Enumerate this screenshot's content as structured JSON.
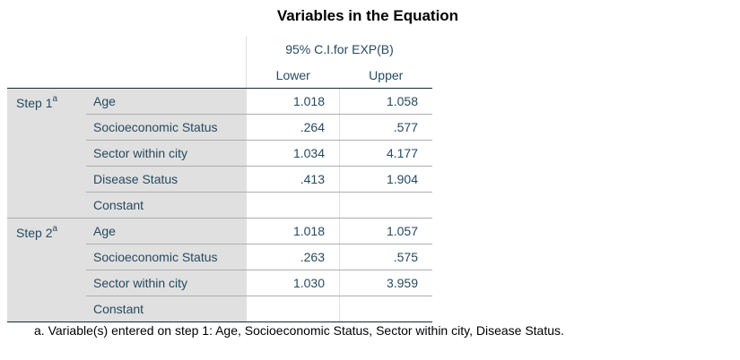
{
  "title": "Variables in the Equation",
  "header": {
    "span_label": "95% C.I.for EXP(B)",
    "lower": "Lower",
    "upper": "Upper"
  },
  "steps": [
    {
      "label": "Step 1",
      "sup": "a",
      "rows": [
        {
          "variable": "Age",
          "lower": "1.018",
          "upper": "1.058"
        },
        {
          "variable": "Socioeconomic Status",
          "lower": ".264",
          "upper": ".577"
        },
        {
          "variable": "Sector within city",
          "lower": "1.034",
          "upper": "4.177"
        },
        {
          "variable": "Disease Status",
          "lower": ".413",
          "upper": "1.904"
        },
        {
          "variable": "Constant",
          "lower": "",
          "upper": ""
        }
      ]
    },
    {
      "label": "Step 2",
      "sup": "a",
      "rows": [
        {
          "variable": "Age",
          "lower": "1.018",
          "upper": "1.057"
        },
        {
          "variable": "Socioeconomic Status",
          "lower": ".263",
          "upper": ".575"
        },
        {
          "variable": "Sector within city",
          "lower": "1.030",
          "upper": "3.959"
        },
        {
          "variable": "Constant",
          "lower": "",
          "upper": ""
        }
      ]
    }
  ],
  "footnote": "a. Variable(s) entered on step 1: Age, Socioeconomic Status, Sector within city, Disease Status."
}
